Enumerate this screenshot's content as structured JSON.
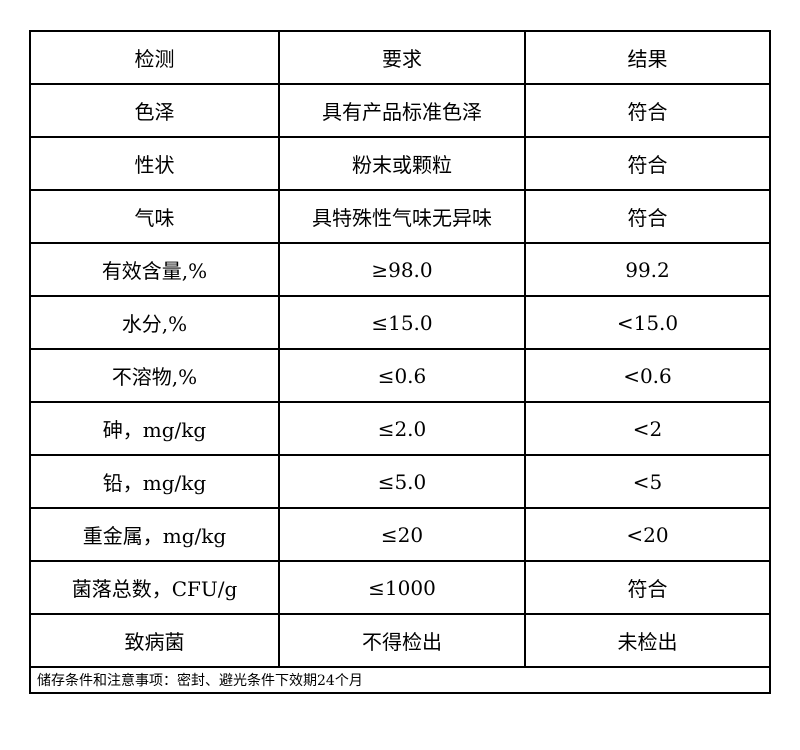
{
  "header": [
    "检测",
    "要求",
    "结果"
  ],
  "rows": [
    {
      "item": "色泽",
      "requirement": "具有产品标准色泽",
      "result": "符合"
    },
    {
      "item": "性状",
      "requirement": "粉末或颗粒",
      "result": "符合"
    },
    {
      "item": "气味",
      "requirement": "具特殊性气味无异味",
      "result": "符合"
    },
    {
      "item": "有效含量,%",
      "requirement": "≥98.0",
      "result": "99.2"
    },
    {
      "item": "水分,%",
      "requirement": "≤15.0",
      "result": "<15.0"
    },
    {
      "item": "不溶物,%",
      "requirement": "≤0.6",
      "result": "<0.6"
    },
    {
      "item": "砷，mg/kg",
      "requirement": "≤2.0",
      "result": "<2"
    },
    {
      "item": "铅，mg/kg",
      "requirement": "≤5.0",
      "result": "<5"
    },
    {
      "item": "重金属，mg/kg",
      "requirement": "≤20",
      "result": "<20"
    },
    {
      "item": "菌落总数，CFU/g",
      "requirement": "≤1000",
      "result": "符合"
    },
    {
      "item": "致病菌",
      "requirement": "不得检出",
      "result": "未检出"
    }
  ],
  "footer_note": "储存条件和注意事项：密封、避光条件下效期24个月"
}
